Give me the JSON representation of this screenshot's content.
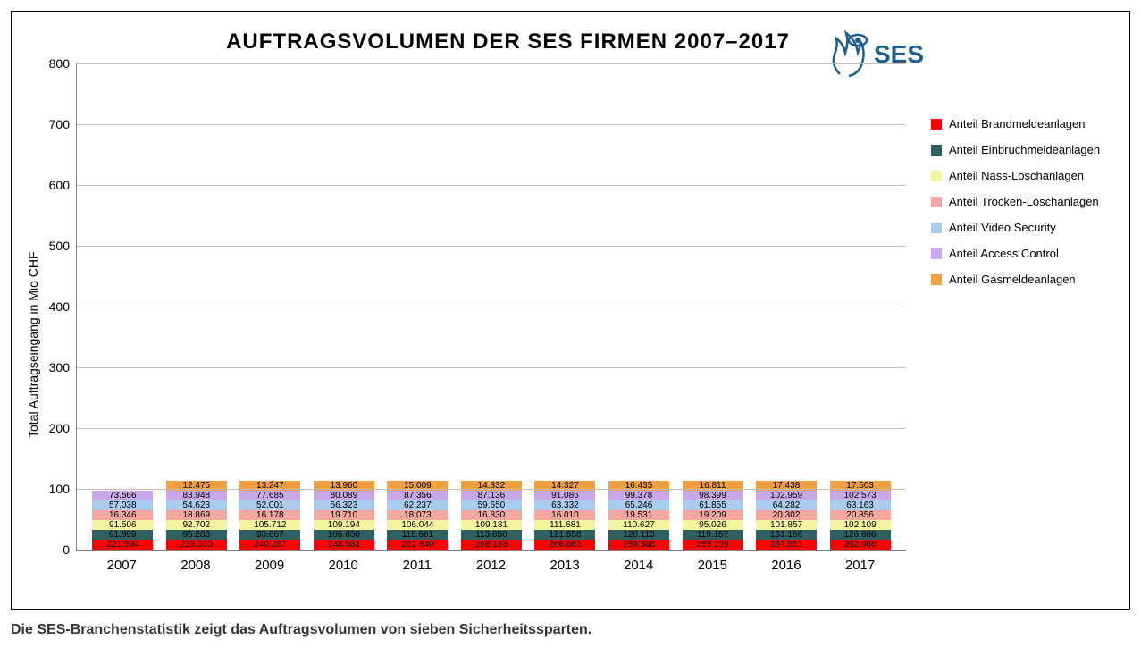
{
  "title": "AUFTRAGSVOLUMEN DER SES FIRMEN 2007–2017",
  "logo_text": "SES",
  "yaxis_label": "Total Auftragseingang in Mio CHF",
  "caption": "Die SES-Branchenstatistik zeigt das Auftragsvolumen von sieben Sicherheitssparten.",
  "chart": {
    "type": "stacked-bar",
    "ylim": [
      0,
      800
    ],
    "ytick_step": 100,
    "background_color": "#ffffff",
    "grid_color": "#c0c0c0",
    "categories": [
      "2007",
      "2008",
      "2009",
      "2010",
      "2011",
      "2012",
      "2013",
      "2014",
      "2015",
      "2016",
      "2017"
    ],
    "series": [
      {
        "key": "brand",
        "label": "Anteil Brandmeldeanlagen",
        "color": "#ff0000",
        "text_color": "#000000"
      },
      {
        "key": "einbruch",
        "label": "Anteil Einbruchmeldeanlagen",
        "color": "#2f5f5f",
        "text_color": "#000000"
      },
      {
        "key": "nass",
        "label": "Anteil Nass-Löschanlagen",
        "color": "#f5f5a0",
        "text_color": "#000000"
      },
      {
        "key": "trocken",
        "label": "Anteil Trocken-Löschanlagen",
        "color": "#f4a6a0",
        "text_color": "#000000"
      },
      {
        "key": "video",
        "label": "Anteil Video Security",
        "color": "#a8cdef",
        "text_color": "#000000"
      },
      {
        "key": "access",
        "label": "Anteil Access Control",
        "color": "#c8a8e8",
        "text_color": "#000000"
      },
      {
        "key": "gas",
        "label": "Anteil Gasmeldeanlagen",
        "color": "#f0a040",
        "text_color": "#000000"
      }
    ],
    "data": {
      "2007": {
        "brand": 221.594,
        "einbruch": 91.899,
        "nass": 91.506,
        "trocken": 16.346,
        "video": 57.038,
        "access": 73.566,
        "gas": 0
      },
      "2008": {
        "brand": 239.3,
        "einbruch": 95.283,
        "nass": 92.702,
        "trocken": 18.869,
        "video": 54.623,
        "access": 83.948,
        "gas": 12.475
      },
      "2009": {
        "brand": 240.287,
        "einbruch": 93.867,
        "nass": 105.712,
        "trocken": 16.178,
        "video": 52.001,
        "access": 77.685,
        "gas": 13.247
      },
      "2010": {
        "brand": 248.581,
        "einbruch": 105.03,
        "nass": 109.194,
        "trocken": 19.71,
        "video": 56.323,
        "access": 80.089,
        "gas": 13.96
      },
      "2011": {
        "brand": 262.64,
        "einbruch": 115.661,
        "nass": 106.044,
        "trocken": 18.073,
        "video": 62.237,
        "access": 87.356,
        "gas": 15.009
      },
      "2012": {
        "brand": 268.198,
        "einbruch": 113.85,
        "nass": 109.181,
        "trocken": 16.83,
        "video": 59.65,
        "access": 87.136,
        "gas": 14.832
      },
      "2013": {
        "brand": 268.663,
        "einbruch": 121.558,
        "nass": 111.681,
        "trocken": 16.01,
        "video": 63.332,
        "access": 91.086,
        "gas": 14.327
      },
      "2014": {
        "brand": 259.388,
        "einbruch": 120.113,
        "nass": 110.627,
        "trocken": 19.531,
        "video": 65.246,
        "access": 99.378,
        "gas": 16.435
      },
      "2015": {
        "brand": 258.159,
        "einbruch": 119.157,
        "nass": 95.026,
        "trocken": 19.209,
        "video": 61.855,
        "access": 98.399,
        "gas": 16.811
      },
      "2016": {
        "brand": 267.851,
        "einbruch": 131.166,
        "nass": 101.857,
        "trocken": 20.302,
        "video": 64.282,
        "access": 102.959,
        "gas": 17.438
      },
      "2017": {
        "brand": 262.986,
        "einbruch": 126.68,
        "nass": 102.109,
        "trocken": 20.856,
        "video": 63.163,
        "access": 102.573,
        "gas": 17.503
      }
    }
  },
  "logo_color": "#1b5f8f"
}
